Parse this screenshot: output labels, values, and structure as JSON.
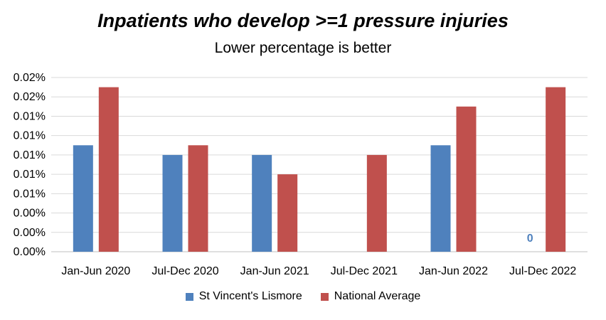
{
  "chart_data": {
    "type": "bar",
    "title": "Inpatients who develop >=1 pressure  injuries",
    "subtitle": "Lower percentage is better",
    "categories": [
      "Jan-Jun 2020",
      "Jul-Dec 2020",
      "Jan-Jun 2021",
      "Jul-Dec 2021",
      "Jan-Jun 2022",
      "Jul-Dec 2022"
    ],
    "y_tick_labels": [
      "0.00%",
      "0.00%",
      "0.00%",
      "0.01%",
      "0.01%",
      "0.01%",
      "0.01%",
      "0.01%",
      "0.02%",
      "0.02%"
    ],
    "ylim": [
      0,
      0.018
    ],
    "series": [
      {
        "name": "St Vincent's Lismore",
        "color": "#4F81BD",
        "values": [
          0.011,
          0.01,
          0.01,
          null,
          0.011,
          0
        ]
      },
      {
        "name": "National Average",
        "color": "#C0504D",
        "values": [
          0.017,
          0.011,
          0.008,
          0.01,
          0.015,
          0.017
        ]
      }
    ],
    "data_labels": [
      {
        "series": 0,
        "index": 5,
        "text": "0"
      }
    ],
    "grid": true,
    "legend_position": "bottom"
  }
}
